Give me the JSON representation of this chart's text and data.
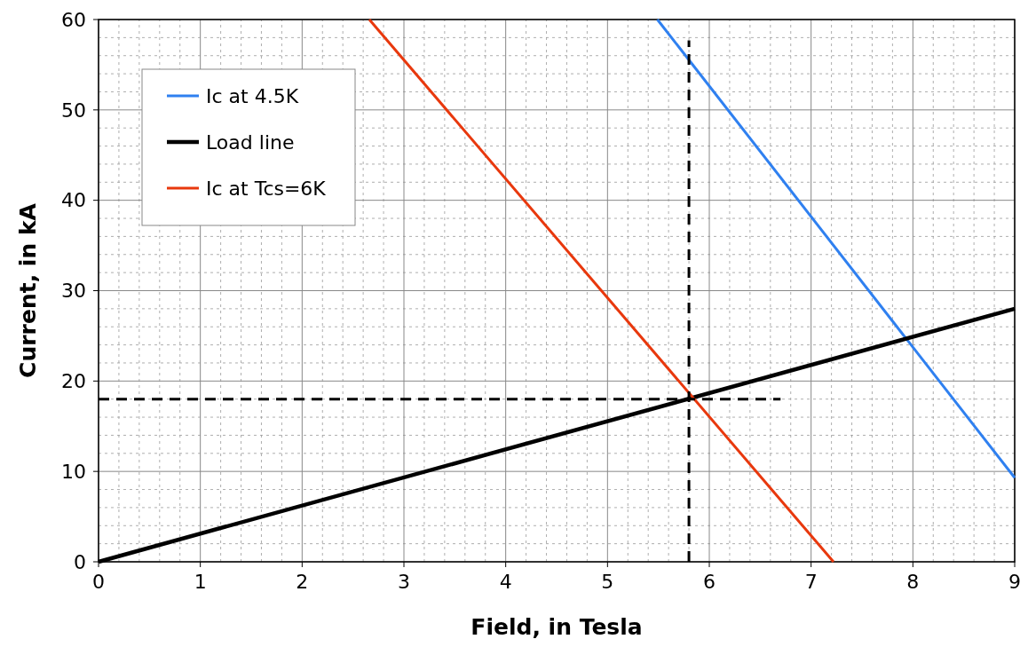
{
  "chart_data": {
    "type": "line",
    "xlabel": "Field, in Tesla",
    "ylabel": "Current, in kA",
    "xlim": [
      0,
      9
    ],
    "ylim": [
      0,
      60
    ],
    "xticks": [
      0,
      1,
      2,
      3,
      4,
      5,
      6,
      7,
      8,
      9
    ],
    "yticks": [
      0,
      10,
      20,
      30,
      40,
      50,
      60
    ],
    "grid": true,
    "legend": "top left",
    "marker": "none",
    "series": [
      {
        "name": "Ic at 4.5K",
        "color": "#2f80f0",
        "x": [
          5.49,
          9
        ],
        "values": [
          60,
          9.3
        ]
      },
      {
        "name": "Load line",
        "color": "#000000",
        "x": [
          0,
          9
        ],
        "values": [
          0,
          28
        ]
      },
      {
        "name": "Ic at Tcs=6K",
        "color": "#e8380d",
        "x": [
          2.66,
          7.22
        ],
        "values": [
          60,
          0
        ]
      },
      {
        "color": "#000000",
        "line_style": "dashed",
        "x": [
          0,
          6.7
        ],
        "values": [
          18,
          18
        ]
      },
      {
        "color": "#000000",
        "line_style": "dashed",
        "x": [
          5.8,
          5.8
        ],
        "values": [
          0,
          57.7
        ]
      }
    ]
  }
}
